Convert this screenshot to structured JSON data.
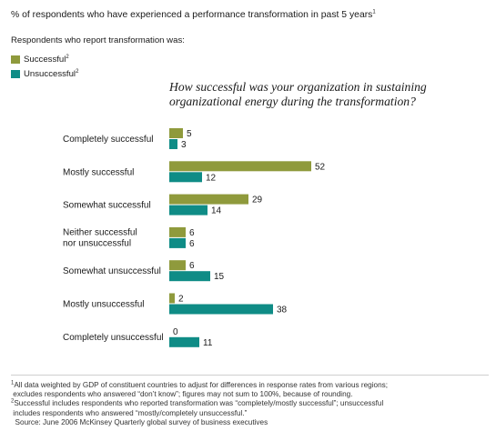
{
  "header": {
    "title": "% of respondents who have experienced a performance transformation in past 5 years",
    "title_sup": "1",
    "subtitle": "Respondents who report transformation was:"
  },
  "legend": [
    {
      "label": "Successful",
      "sup": "2",
      "color": "#8f9a3c"
    },
    {
      "label": "Unsuccessful",
      "sup": "2",
      "color": "#0f8c86"
    }
  ],
  "question": "How successful was your organization in sustaining organizational energy during the transformation?",
  "chart_data": {
    "type": "bar",
    "orientation": "horizontal",
    "categories": [
      "Completely successful",
      "Mostly successful",
      "Somewhat successful",
      "Neither successful nor unsuccessful",
      "Somewhat unsuccessful",
      "Mostly unsuccessful",
      "Completely unsuccessful"
    ],
    "series": [
      {
        "name": "Successful",
        "color": "#8f9a3c",
        "values": [
          5,
          52,
          29,
          6,
          6,
          2,
          0
        ]
      },
      {
        "name": "Unsuccessful",
        "color": "#0f8c86",
        "values": [
          3,
          12,
          14,
          6,
          15,
          38,
          11
        ]
      }
    ],
    "data_labels": true,
    "grid": false,
    "legend_position": "top-left"
  },
  "footnotes": [
    {
      "sup": "1",
      "text": "All data weighted by GDP of constituent countries to adjust for differences in response rates from various regions;\n excludes respondents who answered “don’t know”; figures may not sum to 100%, because of rounding."
    },
    {
      "sup": "2",
      "text": "Successful includes respondents who reported transformation was “completely/mostly successful”; unsuccessful\n includes respondents who answered “mostly/completely unsuccessful.”"
    },
    {
      "sup": "",
      "text": "  Source: June 2006 McKinsey Quarterly global survey of business executives"
    }
  ]
}
